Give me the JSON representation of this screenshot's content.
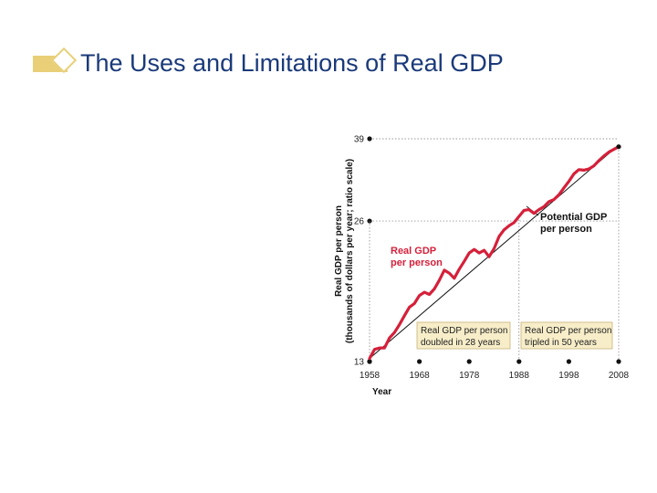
{
  "slide": {
    "title": "The Uses and Limitations of Real GDP"
  },
  "colors": {
    "accent": "#e8cf78",
    "title": "#1a3a7a",
    "real_gdp": "#d5203a",
    "potential_gdp": "#111111",
    "box_fill": "#f7edc8"
  },
  "chart_data": {
    "type": "line",
    "title": "",
    "xlabel": "Year",
    "ylabel_line1": "Real GDP per person",
    "ylabel_line2": "(thousands of dollars per year; ratio scale)",
    "y_scale": "log",
    "xlim": [
      1958,
      2008
    ],
    "ylim": [
      13,
      39
    ],
    "x_ticks": [
      1958,
      1968,
      1978,
      1988,
      1998,
      2008
    ],
    "x_tick_labels": [
      "1958",
      "1968",
      "1978",
      "1988",
      "1998",
      "2008"
    ],
    "y_ticks": [
      13,
      26,
      39
    ],
    "y_tick_labels": [
      "13",
      "26",
      "39"
    ],
    "series": [
      {
        "name": "Real GDP per person",
        "x": [
          1958,
          1959,
          1960,
          1961,
          1962,
          1963,
          1964,
          1965,
          1966,
          1967,
          1968,
          1969,
          1970,
          1971,
          1972,
          1973,
          1974,
          1975,
          1976,
          1977,
          1978,
          1979,
          1980,
          1981,
          1982,
          1983,
          1984,
          1985,
          1986,
          1987,
          1988,
          1989,
          1990,
          1991,
          1992,
          1993,
          1994,
          1995,
          1996,
          1997,
          1998,
          1999,
          2000,
          2001,
          2002,
          2003,
          2004,
          2005,
          2006,
          2007,
          2008
        ],
        "values": [
          13.2,
          13.8,
          13.9,
          13.9,
          14.6,
          15.0,
          15.6,
          16.3,
          17.0,
          17.3,
          18.0,
          18.3,
          18.1,
          18.6,
          19.4,
          20.4,
          20.1,
          19.6,
          20.5,
          21.3,
          22.2,
          22.6,
          22.2,
          22.5,
          21.8,
          22.7,
          24.1,
          24.9,
          25.4,
          25.8,
          26.6,
          27.4,
          27.5,
          27.0,
          27.5,
          27.9,
          28.6,
          28.9,
          29.6,
          30.6,
          31.6,
          32.8,
          33.5,
          33.4,
          33.6,
          34.1,
          35.0,
          35.8,
          36.5,
          37.0,
          37.5
        ]
      },
      {
        "name": "Potential GDP per person",
        "x": [
          1958,
          2008
        ],
        "values": [
          13.2,
          37.8
        ]
      }
    ],
    "annotations": {
      "real_gdp_label_1": "Real GDP",
      "real_gdp_label_2": "per person",
      "potential_label_1": "Potential GDP",
      "potential_label_2": "per person",
      "box1_line1": "Real GDP per person",
      "box1_line2": "doubled in 28 years",
      "box2_line1": "Real GDP per person",
      "box2_line2": "tripled in 50 years"
    },
    "grid": false,
    "legend": "none"
  }
}
